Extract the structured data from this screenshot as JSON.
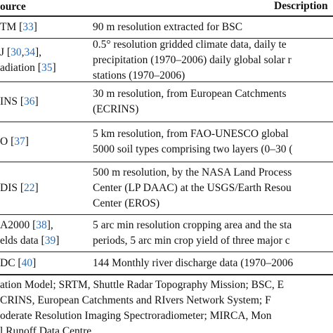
{
  "table": {
    "header": [
      "ource",
      "Description"
    ],
    "rows": [
      [
        [
          "TM [33]"
        ],
        [
          "90 m resolution extracted for BSC"
        ]
      ],
      [
        [
          "J [30,34],",
          "adiation [35]"
        ],
        [
          "0.5° resolution gridded climate data, daily te",
          "precipitation (1970–2006) daily global solar r",
          "stations (1970–2006)"
        ]
      ],
      [
        [
          "INS [36]"
        ],
        [
          "30 m resolution, from European Catchments",
          "(ECRINS)"
        ]
      ],
      [
        [
          "O [37]"
        ],
        [
          "5 km resolution, from FAO-UNESCO global",
          "5000 soil types comprising two layers (0–30 ("
        ]
      ],
      [
        [
          "DIS [22]"
        ],
        [
          "500 m resolution, by the NASA Land Process",
          "Center (LP DAAC) at the USGS/Earth Resou",
          "Center (EROS)"
        ]
      ],
      [
        [
          "A2000 [38],",
          "elds data [39]"
        ],
        [
          "5 arc min resolution cropping area and the sta",
          "periods, 5 arc min crop yield of three major c"
        ]
      ],
      [
        [
          "DC [40]"
        ],
        [
          "144 Monthly river discharge data (1970–2006"
        ]
      ]
    ]
  },
  "footnote": [
    "ation Model; SRTM, Shuttle Radar Topography Mission; BSC, E",
    "CRINS, European Catchments and RIvers Network System; F",
    "oderate Resolution Imaging Spectroradiometer; MIRCA, Mon",
    "l Runoff Data Centre."
  ]
}
